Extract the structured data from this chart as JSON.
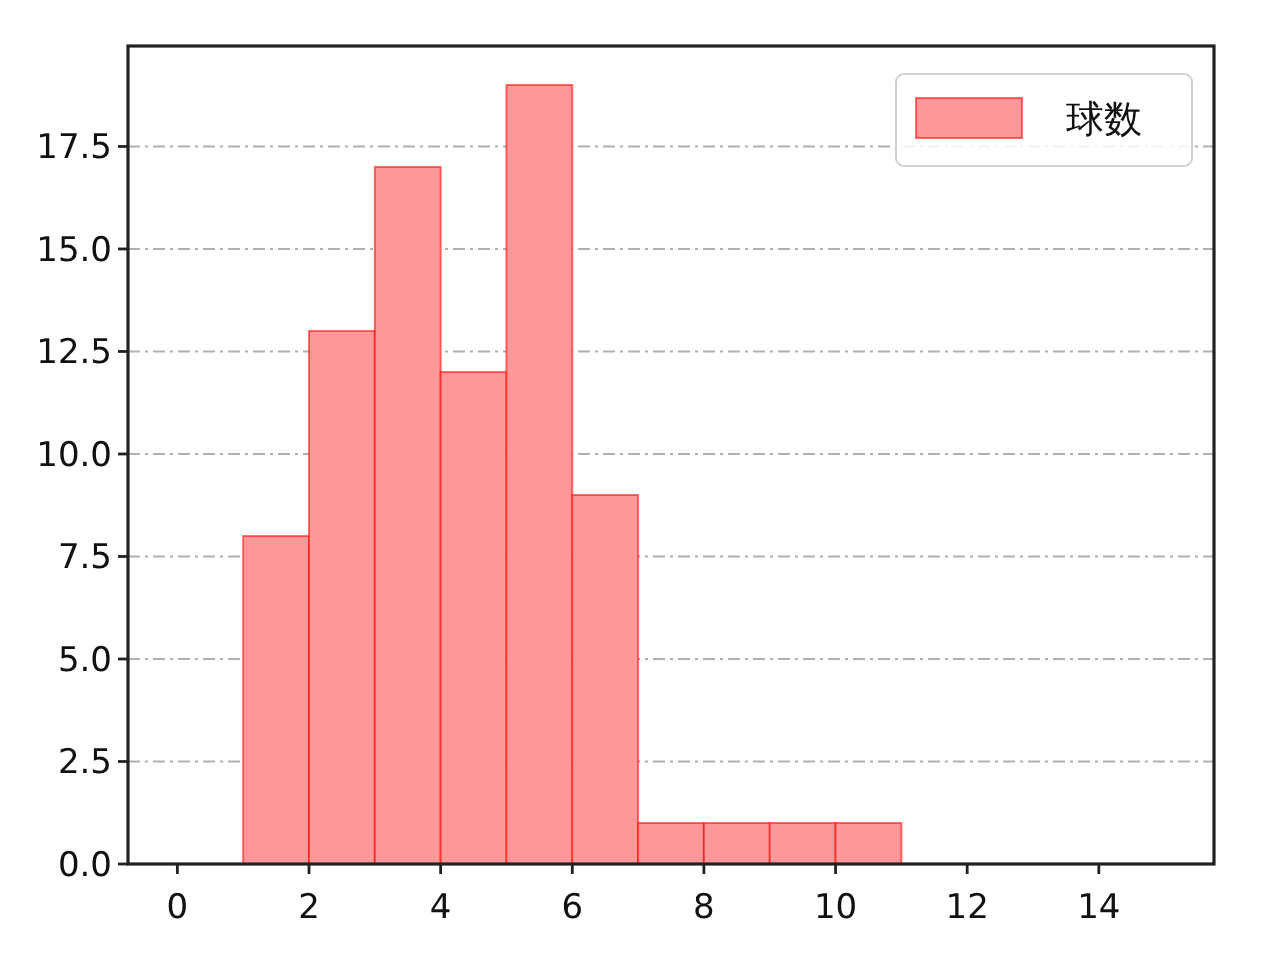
{
  "chart_data": {
    "type": "histogram",
    "bins": [
      1,
      2,
      3,
      4,
      5,
      6,
      7,
      8,
      9,
      10,
      11
    ],
    "series": [
      {
        "name": "球数",
        "color": "#ff9999",
        "values": [
          8,
          13,
          17,
          12,
          19,
          9,
          1,
          1,
          1,
          1
        ]
      }
    ],
    "xlim": [
      -0.75,
      15.75
    ],
    "xticks": [
      0,
      2,
      4,
      6,
      8,
      10,
      12,
      14
    ],
    "ylim": [
      0,
      19.95
    ],
    "yticks": [
      {
        "value": 0,
        "label": "0.0"
      },
      2.5,
      {
        "value": 5,
        "label": "5.0"
      },
      7.5,
      {
        "value": 10,
        "label": "10.0"
      },
      12.5,
      {
        "value": 15,
        "label": "15.0"
      },
      17.5
    ],
    "grid": "y",
    "legend": "top right"
  }
}
